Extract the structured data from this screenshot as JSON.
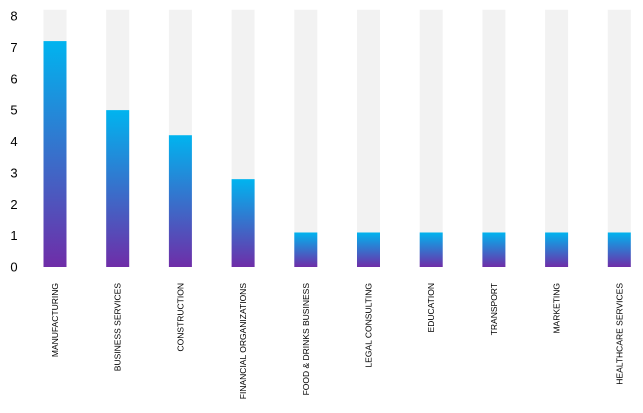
{
  "chart_data": {
    "type": "bar",
    "title": "",
    "xlabel": "",
    "ylabel": "",
    "ylim": [
      0,
      8
    ],
    "yticks": [
      0,
      1,
      2,
      3,
      4,
      5,
      6,
      7,
      8
    ],
    "grid": false,
    "legend": "none",
    "categories": [
      "MANUFACTURING",
      "BUSINESS SERVICES",
      "CONSTRUCTION",
      "FINANCIAL ORGANIZATIONS",
      "FOOD & DRINKS BUSINESS",
      "LEGAL CONSULTING",
      "EDUCATION",
      "TRANSPORT",
      "MARKETING",
      "HEALTHCARE SERVICES"
    ],
    "values": [
      7.2,
      5.0,
      4.2,
      2.8,
      1.1,
      1.1,
      1.1,
      1.1,
      1.1,
      1.1
    ],
    "background_values": [
      8.2,
      8.2,
      8.2,
      8.2,
      8.2,
      8.2,
      8.2,
      8.2,
      8.2,
      8.2
    ],
    "colors": {
      "bar_top": "#00b4ef",
      "bar_bottom": "#6f2da8",
      "background_bar": "#f2f2f2",
      "text": "#000000"
    }
  }
}
